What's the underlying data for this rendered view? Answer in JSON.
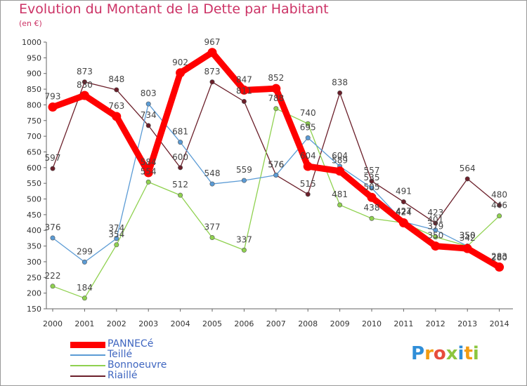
{
  "chart_data": {
    "type": "line",
    "title": "Evolution du Montant de la Dette par Habitant",
    "subtitle": "(en €)",
    "x": [
      "2000",
      "2001",
      "2002",
      "2003",
      "2004",
      "2005",
      "2006",
      "2007",
      "2008",
      "2009",
      "2010",
      "2011",
      "2012",
      "2013",
      "2014"
    ],
    "ylim": [
      150,
      1000
    ],
    "yticks": [
      150,
      200,
      250,
      300,
      350,
      400,
      450,
      500,
      550,
      600,
      650,
      700,
      750,
      800,
      850,
      900,
      950,
      1000
    ],
    "grid": false,
    "legend_position": "bottom-left",
    "series": [
      {
        "name": "PANNECé",
        "color": "#ff0000",
        "values": [
          793,
          830,
          763,
          584,
          902,
          967,
          847,
          852,
          604,
          589,
          505,
          424,
          350,
          342,
          283
        ]
      },
      {
        "name": "Teillé",
        "color": "#5b9bd5",
        "values": [
          376,
          299,
          374,
          803,
          681,
          548,
          559,
          576,
          695,
          604,
          535,
          427,
          401,
          350,
          280
        ]
      },
      {
        "name": "Bonnoeuvre",
        "color": "#8fd14f",
        "values": [
          222,
          184,
          354,
          554,
          512,
          377,
          337,
          788,
          740,
          481,
          438,
          424,
          379,
          350,
          446
        ]
      },
      {
        "name": "Riaillé",
        "color": "#6b1f2a",
        "values": [
          597,
          873,
          848,
          734,
          600,
          873,
          811,
          576,
          515,
          838,
          557,
          491,
          423,
          564,
          480
        ]
      }
    ]
  },
  "logo": {
    "text": "Proxiti",
    "letters": [
      "P",
      "r",
      "o",
      "x",
      "i",
      "t",
      "i"
    ],
    "colors": [
      "#2f8ed8",
      "#f39c12",
      "#e74c3c",
      "#8cc63f",
      "#2f8ed8",
      "#f39c12",
      "#8cc63f"
    ]
  }
}
